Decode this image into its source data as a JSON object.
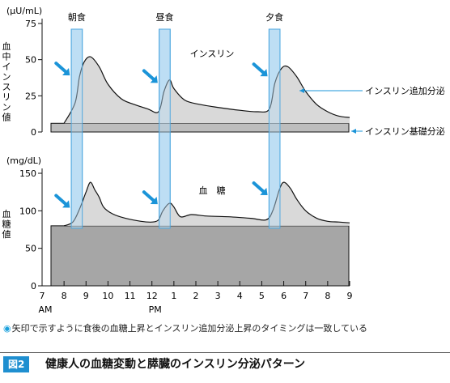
{
  "chart_data": [
    {
      "type": "area",
      "panel": "insulin",
      "y_unit": "(μU/mL)",
      "y_axis_label": "血中インスリン値",
      "ylim": [
        0,
        75
      ],
      "yticks": [
        0,
        25,
        50,
        75
      ],
      "panel_label": "インスリン",
      "meals": [
        {
          "label": "朝食",
          "x": [
            8.33,
            8.83
          ]
        },
        {
          "label": "昼食",
          "x": [
            12.33,
            12.83
          ]
        },
        {
          "label": "夕食",
          "x": [
            17.33,
            17.83
          ]
        }
      ],
      "basal": {
        "label": "インスリン基礎分泌",
        "value": 6
      },
      "bolus": {
        "label": "インスリン追加分泌"
      },
      "series": [
        {
          "x": [
            8.0,
            8.5,
            8.7,
            8.9,
            9.2,
            9.6,
            10.0,
            10.6,
            11.2,
            11.8,
            12.3,
            12.55,
            12.8,
            13.0,
            13.5,
            14.2,
            15.0,
            16.0,
            16.8,
            17.35,
            17.6,
            17.9,
            18.2,
            18.6,
            19.0,
            19.5,
            20.0,
            20.5,
            21.0
          ],
          "y": [
            6,
            20,
            38,
            48,
            52,
            45,
            33,
            23,
            19,
            16,
            14,
            28,
            36,
            30,
            22,
            19,
            17,
            15,
            14,
            16,
            34,
            44,
            45,
            38,
            28,
            19,
            14,
            11,
            10
          ]
        }
      ],
      "arrows": [
        8.3,
        12.3,
        17.3
      ]
    },
    {
      "type": "area",
      "panel": "glucose",
      "y_unit": "(mg/dL)",
      "y_axis_label": "血糖値",
      "ylim": [
        0,
        150
      ],
      "yticks": [
        0,
        50,
        100,
        150
      ],
      "panel_label": "血　糖",
      "baseline": 80,
      "x_ticks": [
        "7",
        "8",
        "9",
        "10",
        "11",
        "12",
        "1",
        "2",
        "3",
        "4",
        "5",
        "6",
        "7",
        "8",
        "9"
      ],
      "x_sublabels": {
        "am": "AM",
        "pm": "PM"
      },
      "series": [
        {
          "x": [
            8.0,
            8.4,
            8.7,
            9.0,
            9.2,
            9.4,
            9.6,
            9.8,
            10.2,
            10.8,
            11.5,
            12.0,
            12.3,
            12.5,
            12.8,
            13.0,
            13.3,
            13.8,
            14.5,
            15.5,
            16.5,
            17.2,
            17.5,
            17.8,
            18.0,
            18.3,
            18.6,
            19.0,
            19.5,
            20.0,
            20.5,
            21.0
          ],
          "y": [
            80,
            85,
            102,
            125,
            138,
            128,
            118,
            105,
            96,
            90,
            86,
            85,
            88,
            100,
            110,
            105,
            92,
            95,
            93,
            92,
            90,
            88,
            100,
            128,
            138,
            130,
            115,
            100,
            90,
            86,
            85,
            84
          ]
        }
      ],
      "arrows": [
        8.3,
        12.3,
        17.3
      ]
    }
  ],
  "note": {
    "text": "矢印で示すように食後の血糖上昇とインスリン追加分泌上昇のタイミングは一致している",
    "color": "#1aa0dc"
  },
  "figure": {
    "label": "図2",
    "title": "健康人の血糖変動と膵臓のインスリン分泌パターン"
  },
  "colors": {
    "meal_fill": "#b7dcf3",
    "meal_stroke": "#4fa8e0",
    "curve_fill": "#d9d9d9",
    "basal_fill": "#bdbdbd",
    "glucose_base_fill": "#a6a6a6",
    "arrow": "#1b94d8",
    "line": "#111111"
  }
}
